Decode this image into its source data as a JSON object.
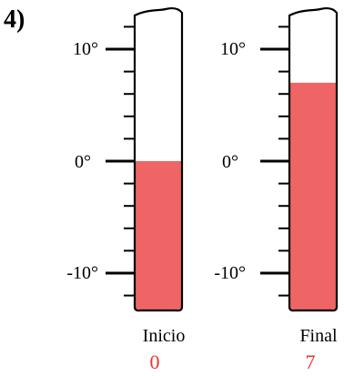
{
  "problem_number": "4)",
  "scale": {
    "max": 10,
    "min": -10,
    "mid": 0,
    "labels": {
      "top": "10°",
      "mid": "0°",
      "bottom": "-10°"
    }
  },
  "thermometers": [
    {
      "label": "Inicio",
      "reading": "0",
      "value": 0
    },
    {
      "label": "Final",
      "reading": "7",
      "value": 7
    }
  ],
  "colors": {
    "fill": "#ef6464",
    "reading": "#e8342a",
    "outline": "#000000"
  }
}
